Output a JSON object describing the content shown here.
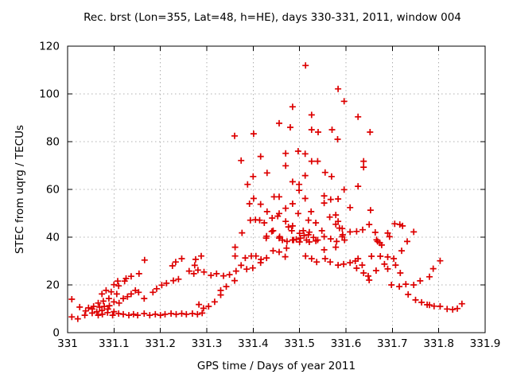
{
  "chart_data": {
    "type": "scatter",
    "title": "Rec. brst (Lon=355, Lat=48, h=HE), days 330-331, 2011, window 004",
    "xlabel": "GPS time / Days of year 2011",
    "ylabel": "STEC from uqrg / TECUs",
    "xlim": [
      331,
      331.9
    ],
    "ylim": [
      0,
      120
    ],
    "xticks": [
      331,
      331.1,
      331.2,
      331.3,
      331.4,
      331.5,
      331.6,
      331.7,
      331.8,
      331.9
    ],
    "xtick_labels": [
      "331",
      "331.1",
      "331.2",
      "331.3",
      "331.4",
      "331.5",
      "331.6",
      "331.7",
      "331.8",
      "331.9"
    ],
    "yticks": [
      0,
      20,
      40,
      60,
      80,
      100,
      120
    ],
    "ytick_labels": [
      "0",
      "20",
      "40",
      "60",
      "80",
      "100",
      "120"
    ],
    "grid": true,
    "grid_style": "dotted",
    "grid_color": "#b0b0b0",
    "border_color": "#000000",
    "background_color": "#ffffff",
    "legend": "none",
    "marker": "plus",
    "marker_color": "#dd0000",
    "series": [
      {
        "name": "STEC from uqrg",
        "points": [
          [
            331.009,
            14.0
          ],
          [
            331.009,
            6.6
          ],
          [
            331.022,
            5.8
          ],
          [
            331.026,
            10.7
          ],
          [
            331.037,
            7.3
          ],
          [
            331.039,
            9.1
          ],
          [
            331.045,
            10.4
          ],
          [
            331.053,
            9.9
          ],
          [
            331.053,
            8.2
          ],
          [
            331.056,
            11.0
          ],
          [
            331.063,
            8.8
          ],
          [
            331.066,
            7.3
          ],
          [
            331.066,
            12.4
          ],
          [
            331.069,
            10.7
          ],
          [
            331.074,
            9.3
          ],
          [
            331.074,
            16.2
          ],
          [
            331.075,
            7.7
          ],
          [
            331.077,
            13.2
          ],
          [
            331.079,
            11.0
          ],
          [
            331.083,
            17.7
          ],
          [
            331.086,
            8.4
          ],
          [
            331.087,
            9.9
          ],
          [
            331.089,
            14.3
          ],
          [
            331.09,
            11.3
          ],
          [
            331.094,
            17.1
          ],
          [
            331.097,
            7.3
          ],
          [
            331.1,
            8.8
          ],
          [
            331.1,
            12.9
          ],
          [
            331.1,
            20.1
          ],
          [
            331.106,
            16.2
          ],
          [
            331.108,
            21.6
          ],
          [
            331.11,
            8.0
          ],
          [
            331.11,
            19.6
          ],
          [
            331.111,
            12.4
          ],
          [
            331.12,
            7.7
          ],
          [
            331.12,
            14.3
          ],
          [
            331.123,
            21.6
          ],
          [
            331.126,
            22.7
          ],
          [
            331.129,
            15.1
          ],
          [
            331.132,
            7.3
          ],
          [
            331.137,
            16.2
          ],
          [
            331.137,
            23.6
          ],
          [
            331.142,
            7.7
          ],
          [
            331.146,
            17.7
          ],
          [
            331.151,
            7.3
          ],
          [
            331.153,
            16.9
          ],
          [
            331.154,
            24.7
          ],
          [
            331.165,
            8.0
          ],
          [
            331.165,
            14.3
          ],
          [
            331.166,
            30.4
          ],
          [
            331.177,
            7.3
          ],
          [
            331.184,
            16.9
          ],
          [
            331.189,
            7.7
          ],
          [
            331.192,
            18.4
          ],
          [
            331.2,
            7.3
          ],
          [
            331.203,
            19.9
          ],
          [
            331.21,
            7.7
          ],
          [
            331.213,
            20.7
          ],
          [
            331.223,
            8.0
          ],
          [
            331.226,
            28.0
          ],
          [
            331.228,
            21.8
          ],
          [
            331.233,
            29.6
          ],
          [
            331.234,
            7.7
          ],
          [
            331.239,
            22.4
          ],
          [
            331.246,
            8.0
          ],
          [
            331.246,
            31.0
          ],
          [
            331.256,
            7.7
          ],
          [
            331.262,
            25.8
          ],
          [
            331.269,
            8.0
          ],
          [
            331.272,
            24.7
          ],
          [
            331.274,
            28.2
          ],
          [
            331.276,
            30.7
          ],
          [
            331.28,
            7.7
          ],
          [
            331.281,
            26.2
          ],
          [
            331.283,
            11.8
          ],
          [
            331.288,
            32.1
          ],
          [
            331.29,
            8.2
          ],
          [
            331.293,
            10.2
          ],
          [
            331.294,
            25.4
          ],
          [
            331.304,
            11.0
          ],
          [
            331.309,
            24.0
          ],
          [
            331.317,
            12.9
          ],
          [
            331.321,
            24.7
          ],
          [
            331.33,
            15.8
          ],
          [
            331.33,
            17.7
          ],
          [
            331.336,
            23.8
          ],
          [
            331.342,
            19.3
          ],
          [
            331.349,
            24.3
          ],
          [
            331.36,
            21.8
          ],
          [
            331.36,
            82.4
          ],
          [
            331.361,
            32.1
          ],
          [
            331.361,
            35.8
          ],
          [
            331.363,
            25.8
          ],
          [
            331.374,
            28.2
          ],
          [
            331.374,
            72.1
          ],
          [
            331.376,
            41.8
          ],
          [
            331.383,
            31.3
          ],
          [
            331.386,
            26.6
          ],
          [
            331.388,
            62.1
          ],
          [
            331.392,
            54.0
          ],
          [
            331.394,
            47.1
          ],
          [
            331.396,
            32.1
          ],
          [
            331.399,
            27.1
          ],
          [
            331.4,
            65.4
          ],
          [
            331.401,
            83.3
          ],
          [
            331.401,
            56.2
          ],
          [
            331.405,
            47.3
          ],
          [
            331.406,
            32.1
          ],
          [
            331.414,
            47.1
          ],
          [
            331.416,
            73.8
          ],
          [
            331.416,
            53.8
          ],
          [
            331.416,
            29.3
          ],
          [
            331.417,
            30.7
          ],
          [
            331.424,
            46.0
          ],
          [
            331.428,
            39.6
          ],
          [
            331.429,
            40.4
          ],
          [
            331.429,
            31.3
          ],
          [
            331.43,
            66.9
          ],
          [
            331.43,
            50.7
          ],
          [
            331.44,
            42.4
          ],
          [
            331.441,
            48.0
          ],
          [
            331.443,
            42.7
          ],
          [
            331.443,
            34.3
          ],
          [
            331.445,
            56.9
          ],
          [
            331.453,
            48.8
          ],
          [
            331.456,
            87.7
          ],
          [
            331.456,
            56.9
          ],
          [
            331.456,
            49.9
          ],
          [
            331.456,
            39.6
          ],
          [
            331.456,
            33.8
          ],
          [
            331.457,
            40.2
          ],
          [
            331.463,
            38.8
          ],
          [
            331.469,
            31.8
          ],
          [
            331.47,
            75.1
          ],
          [
            331.47,
            69.9
          ],
          [
            331.47,
            52.1
          ],
          [
            331.47,
            46.6
          ],
          [
            331.472,
            35.4
          ],
          [
            331.473,
            38.2
          ],
          [
            331.476,
            44.3
          ],
          [
            331.48,
            86.0
          ],
          [
            331.483,
            42.7
          ],
          [
            331.485,
            94.6
          ],
          [
            331.485,
            63.2
          ],
          [
            331.485,
            54.0
          ],
          [
            331.485,
            44.7
          ],
          [
            331.485,
            38.8
          ],
          [
            331.487,
            38.8
          ],
          [
            331.493,
            39.1
          ],
          [
            331.497,
            76.0
          ],
          [
            331.497,
            49.9
          ],
          [
            331.499,
            62.1
          ],
          [
            331.499,
            59.6
          ],
          [
            331.5,
            41.6
          ],
          [
            331.5,
            38.0
          ],
          [
            331.502,
            39.6
          ],
          [
            331.508,
            42.7
          ],
          [
            331.51,
            40.7
          ],
          [
            331.512,
            74.9
          ],
          [
            331.512,
            65.8
          ],
          [
            331.512,
            56.2
          ],
          [
            331.513,
            111.9
          ],
          [
            331.513,
            32.1
          ],
          [
            331.515,
            38.8
          ],
          [
            331.519,
            47.1
          ],
          [
            331.519,
            41.0
          ],
          [
            331.521,
            42.1
          ],
          [
            331.521,
            38.0
          ],
          [
            331.525,
            50.7
          ],
          [
            331.526,
            91.2
          ],
          [
            331.526,
            85.0
          ],
          [
            331.526,
            71.8
          ],
          [
            331.526,
            31.0
          ],
          [
            331.53,
            39.9
          ],
          [
            331.535,
            46.0
          ],
          [
            331.535,
            38.4
          ],
          [
            331.537,
            29.6
          ],
          [
            331.539,
            71.8
          ],
          [
            331.539,
            38.8
          ],
          [
            331.54,
            84.0
          ],
          [
            331.548,
            42.7
          ],
          [
            331.553,
            57.3
          ],
          [
            331.553,
            54.3
          ],
          [
            331.553,
            40.2
          ],
          [
            331.553,
            34.7
          ],
          [
            331.555,
            67.1
          ],
          [
            331.555,
            31.0
          ],
          [
            331.565,
            48.4
          ],
          [
            331.566,
            29.6
          ],
          [
            331.567,
            55.8
          ],
          [
            331.567,
            39.3
          ],
          [
            331.569,
            65.4
          ],
          [
            331.57,
            85.0
          ],
          [
            331.578,
            49.3
          ],
          [
            331.578,
            45.4
          ],
          [
            331.578,
            35.8
          ],
          [
            331.58,
            38.2
          ],
          [
            331.582,
            81.0
          ],
          [
            331.583,
            102.1
          ],
          [
            331.583,
            56.0
          ],
          [
            331.583,
            46.6
          ],
          [
            331.583,
            28.3
          ],
          [
            331.586,
            43.8
          ],
          [
            331.592,
            43.6
          ],
          [
            331.592,
            40.2
          ],
          [
            331.593,
            41.0
          ],
          [
            331.595,
            28.7
          ],
          [
            331.596,
            96.9
          ],
          [
            331.596,
            59.9
          ],
          [
            331.597,
            38.8
          ],
          [
            331.609,
            52.4
          ],
          [
            331.609,
            42.2
          ],
          [
            331.609,
            29.3
          ],
          [
            331.62,
            30.0
          ],
          [
            331.623,
            42.4
          ],
          [
            331.623,
            27.0
          ],
          [
            331.626,
            90.4
          ],
          [
            331.626,
            61.3
          ],
          [
            331.626,
            31.0
          ],
          [
            331.635,
            28.3
          ],
          [
            331.636,
            43.1
          ],
          [
            331.638,
            71.8
          ],
          [
            331.638,
            69.3
          ],
          [
            331.638,
            25.0
          ],
          [
            331.648,
            23.7
          ],
          [
            331.65,
            45.3
          ],
          [
            331.65,
            22.0
          ],
          [
            331.652,
            84.0
          ],
          [
            331.653,
            51.3
          ],
          [
            331.655,
            32.0
          ],
          [
            331.663,
            42.0
          ],
          [
            331.665,
            26.0
          ],
          [
            331.666,
            38.9
          ],
          [
            331.668,
            38.2
          ],
          [
            331.673,
            37.6
          ],
          [
            331.674,
            32.0
          ],
          [
            331.677,
            36.7
          ],
          [
            331.683,
            28.7
          ],
          [
            331.69,
            41.7
          ],
          [
            331.69,
            31.7
          ],
          [
            331.69,
            26.7
          ],
          [
            331.694,
            40.2
          ],
          [
            331.698,
            20.0
          ],
          [
            331.703,
            31.0
          ],
          [
            331.705,
            45.6
          ],
          [
            331.707,
            28.3
          ],
          [
            331.715,
            19.3
          ],
          [
            331.716,
            45.3
          ],
          [
            331.717,
            25.0
          ],
          [
            331.72,
            34.3
          ],
          [
            331.722,
            44.7
          ],
          [
            331.729,
            20.3
          ],
          [
            331.732,
            38.2
          ],
          [
            331.734,
            16.0
          ],
          [
            331.746,
            42.2
          ],
          [
            331.746,
            20.0
          ],
          [
            331.75,
            13.7
          ],
          [
            331.76,
            21.7
          ],
          [
            331.763,
            12.7
          ],
          [
            331.775,
            11.7
          ],
          [
            331.78,
            23.4
          ],
          [
            331.78,
            11.6
          ],
          [
            331.788,
            26.8
          ],
          [
            331.79,
            11.1
          ],
          [
            331.803,
            30.1
          ],
          [
            331.803,
            11.0
          ],
          [
            331.818,
            9.9
          ],
          [
            331.83,
            9.7
          ],
          [
            331.84,
            10.1
          ],
          [
            331.85,
            12.1
          ]
        ]
      }
    ]
  }
}
